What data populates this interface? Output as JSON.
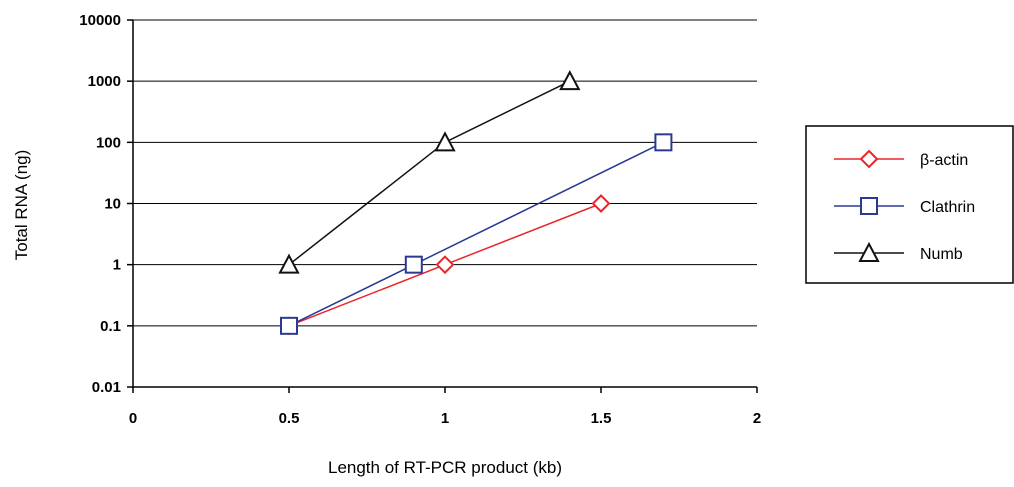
{
  "chart_data": {
    "type": "line",
    "title": "",
    "xlabel": "Length of RT-PCR product (kb)",
    "ylabel": "Total RNA (ng)",
    "xlim": [
      0,
      2
    ],
    "ylim": [
      0.01,
      10000
    ],
    "yscale": "log",
    "grid": "horizontal major gridlines",
    "legend_position": "right",
    "x_ticks": [
      0,
      0.5,
      1,
      1.5,
      2
    ],
    "x_tick_labels": [
      "0",
      "0.5",
      "1",
      "1.5",
      "2"
    ],
    "y_ticks": [
      0.01,
      0.1,
      1,
      10,
      100,
      1000,
      10000
    ],
    "y_tick_labels": [
      "0.01",
      "0.1",
      "1",
      "10",
      "100",
      "1000",
      "10000"
    ],
    "series": [
      {
        "name": "β-actin",
        "color": "#e8262a",
        "marker": "diamond",
        "points": [
          [
            0.5,
            0.1
          ],
          [
            1.0,
            1
          ],
          [
            1.5,
            10
          ]
        ]
      },
      {
        "name": "Clathrin",
        "color": "#2a3a94",
        "marker": "square",
        "points": [
          [
            0.5,
            0.1
          ],
          [
            0.9,
            1
          ],
          [
            1.7,
            100
          ]
        ]
      },
      {
        "name": "Numb",
        "color": "#111111",
        "marker": "triangle",
        "points": [
          [
            0.5,
            1
          ],
          [
            1.0,
            100
          ],
          [
            1.4,
            1000
          ]
        ]
      }
    ]
  }
}
